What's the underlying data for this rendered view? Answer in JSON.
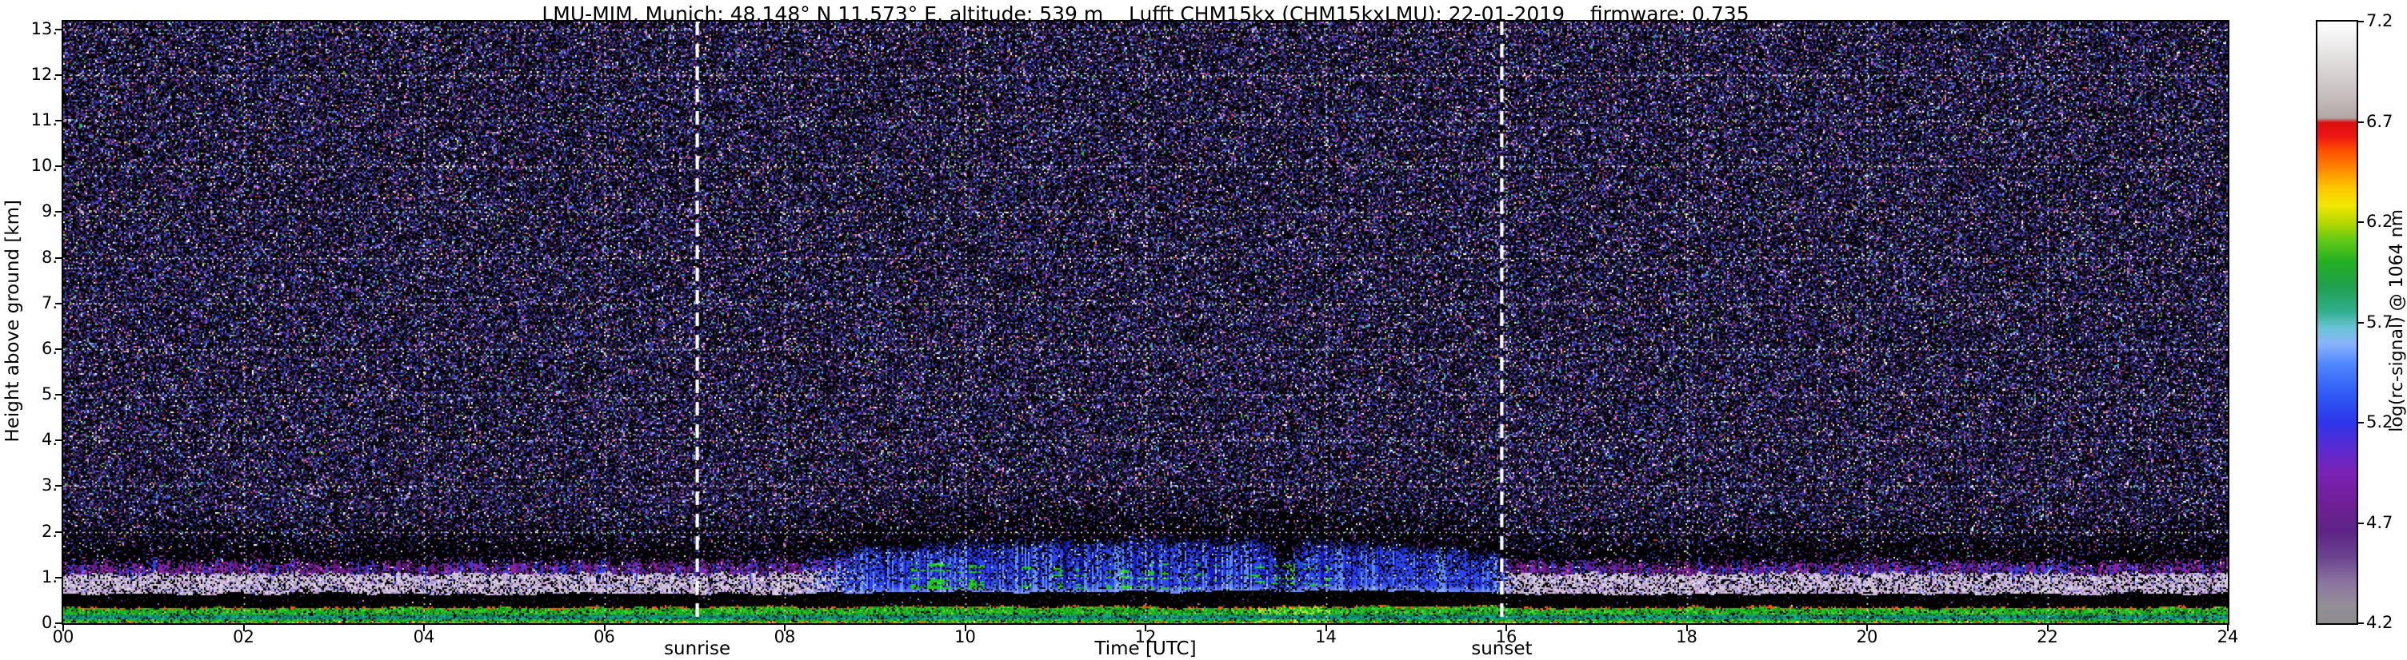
{
  "figure": {
    "title": "LMU-MIM, Munich; 48.148° N 11.573° E, altitude: 539 m    Lufft CHM15kx (CHM15kxLMU): 22-01-2019    firmware: 0.735"
  },
  "chart_data": {
    "type": "heatmap",
    "title": "LMU-MIM, Munich; 48.148° N 11.573° E, altitude: 539 m    Lufft CHM15kx (CHM15kxLMU): 22-01-2019    firmware: 0.735",
    "xlabel": "Time [UTC]",
    "ylabel": "Height above ground [km]",
    "xlim": [
      0,
      24
    ],
    "ylim": [
      0,
      13.17
    ],
    "xticks": [
      {
        "value": 0,
        "label": "00"
      },
      {
        "value": 2,
        "label": "02"
      },
      {
        "value": 4,
        "label": "04"
      },
      {
        "value": 6,
        "label": "06"
      },
      {
        "value": 8,
        "label": "08"
      },
      {
        "value": 10,
        "label": "10"
      },
      {
        "value": 12,
        "label": "12"
      },
      {
        "value": 14,
        "label": "14"
      },
      {
        "value": 16,
        "label": "16"
      },
      {
        "value": 18,
        "label": "18"
      },
      {
        "value": 20,
        "label": "20"
      },
      {
        "value": 22,
        "label": "22"
      },
      {
        "value": 24,
        "label": "24"
      }
    ],
    "yticks": [
      {
        "value": 0,
        "label": "0."
      },
      {
        "value": 1,
        "label": "1."
      },
      {
        "value": 2,
        "label": "2."
      },
      {
        "value": 3,
        "label": "3."
      },
      {
        "value": 4,
        "label": "4."
      },
      {
        "value": 5,
        "label": "5."
      },
      {
        "value": 6,
        "label": "6."
      },
      {
        "value": 7,
        "label": "7."
      },
      {
        "value": 8,
        "label": "8."
      },
      {
        "value": 9,
        "label": "9."
      },
      {
        "value": 10,
        "label": "10."
      },
      {
        "value": 11,
        "label": "11."
      },
      {
        "value": 12,
        "label": "12."
      },
      {
        "value": 13,
        "label": "13."
      }
    ],
    "grid": {
      "visible": true,
      "style": "dotted",
      "color": "#ffffff"
    },
    "colorbar": {
      "label": "log(rc-signal) @ 1064 nm",
      "min": 4.2,
      "max": 7.2,
      "ticks": [
        {
          "value": 7.2,
          "label": "7.2"
        },
        {
          "value": 6.7,
          "label": "6.7"
        },
        {
          "value": 6.2,
          "label": "6.2"
        },
        {
          "value": 5.7,
          "label": "5.7"
        },
        {
          "value": 5.2,
          "label": "5.2"
        },
        {
          "value": 4.7,
          "label": "4.7"
        },
        {
          "value": 4.2,
          "label": "4.2"
        }
      ],
      "gradient_stops": [
        {
          "pos": 0.0,
          "color": "#8c8c8c"
        },
        {
          "pos": 0.03,
          "color": "#948e98"
        },
        {
          "pos": 0.07,
          "color": "#8a72a0"
        },
        {
          "pos": 0.11,
          "color": "#6b4390"
        },
        {
          "pos": 0.15,
          "color": "#5d2585"
        },
        {
          "pos": 0.2,
          "color": "#6f1f96"
        },
        {
          "pos": 0.25,
          "color": "#7a22b4"
        },
        {
          "pos": 0.29,
          "color": "#5c2ad2"
        },
        {
          "pos": 0.333,
          "color": "#2d35e8"
        },
        {
          "pos": 0.38,
          "color": "#2f5af5"
        },
        {
          "pos": 0.43,
          "color": "#4f86ff"
        },
        {
          "pos": 0.465,
          "color": "#8ab4fa"
        },
        {
          "pos": 0.49,
          "color": "#6cc4d8"
        },
        {
          "pos": 0.52,
          "color": "#2fae8a"
        },
        {
          "pos": 0.56,
          "color": "#1fa04e"
        },
        {
          "pos": 0.6,
          "color": "#22b022"
        },
        {
          "pos": 0.635,
          "color": "#5ec818"
        },
        {
          "pos": 0.665,
          "color": "#b4d800"
        },
        {
          "pos": 0.695,
          "color": "#f0e800"
        },
        {
          "pos": 0.725,
          "color": "#ffc400"
        },
        {
          "pos": 0.755,
          "color": "#ff8800"
        },
        {
          "pos": 0.785,
          "color": "#ff5000"
        },
        {
          "pos": 0.81,
          "color": "#ee1414"
        },
        {
          "pos": 0.832,
          "color": "#d80f0f"
        },
        {
          "pos": 0.84,
          "color": "#b2a6a6"
        },
        {
          "pos": 0.88,
          "color": "#c8c0c0"
        },
        {
          "pos": 0.93,
          "color": "#dedada"
        },
        {
          "pos": 1.0,
          "color": "#ffffff"
        }
      ]
    },
    "annotations": [
      {
        "label": "sunrise",
        "time_utc": 7.03,
        "style": "dashed-white-vertical-line"
      },
      {
        "label": "sunset",
        "time_utc": 15.95,
        "style": "dashed-white-vertical-line"
      }
    ],
    "features": [
      {
        "name": "surface signal",
        "time_utc": [
          0,
          24
        ],
        "height_km": [
          0,
          0.05
        ],
        "appearance": "orange-red line, log(rc-signal) ≈ 6.3–6.7"
      },
      {
        "name": "near-surface aerosol layer",
        "time_utc": [
          0,
          24
        ],
        "height_km": [
          0.05,
          0.35
        ],
        "appearance": "green with teal core, log(rc-signal) ≈ 5.7–6.1"
      },
      {
        "name": "saturated band",
        "time_utc": [
          0,
          24
        ],
        "height_km": [
          0.35,
          0.7
        ],
        "appearance": "black, signal below color range"
      },
      {
        "name": "nocturnal residual layer",
        "time_utc": [
          0,
          8
        ],
        "height_km": [
          0.7,
          1.5
        ],
        "appearance": "pale lavender with magenta/blue vertical streaks, log(rc-signal) ≈ 4.5–5.2"
      },
      {
        "name": "daytime convective aerosol layer",
        "time_utc": [
          8,
          16
        ],
        "height_km": [
          0.7,
          1.8
        ],
        "appearance": "blue/cyan, log(rc-signal) ≈ 5.2–5.7"
      },
      {
        "name": "cloud / strong aerosol patches",
        "time_utc": [
          9.5,
          14
        ],
        "height_km": [
          0.8,
          1.3
        ],
        "appearance": "green blobs, log(rc-signal) ≈ 5.9–6.2"
      },
      {
        "name": "dark disturbance column",
        "time_utc": [
          13.4,
          13.7
        ],
        "height_km": [
          0.7,
          2.4
        ],
        "appearance": "black vertical notch interrupting the layer"
      },
      {
        "name": "evening residual layer",
        "time_utc": [
          16,
          24
        ],
        "height_km": [
          0.7,
          1.5
        ],
        "appearance": "purple/magenta with blue streaks"
      },
      {
        "name": "background",
        "time_utc": [
          0,
          24
        ],
        "height_km": [
          2,
          13.17
        ],
        "appearance": "speckle noise, log(rc-signal) ≈ 4.2–5.2"
      }
    ]
  }
}
